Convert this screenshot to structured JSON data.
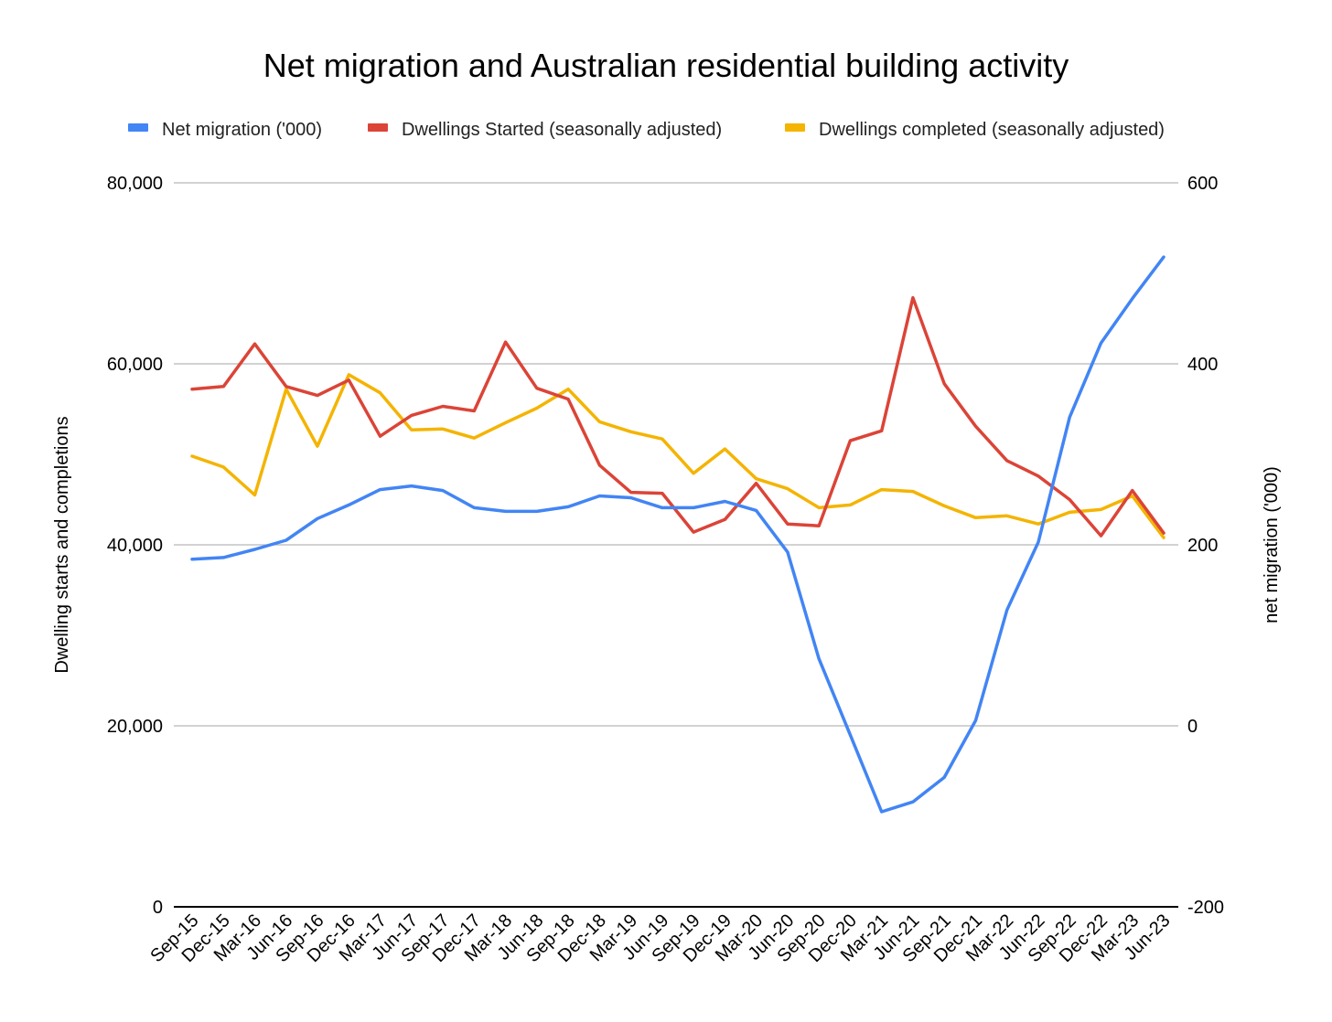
{
  "chart_data": {
    "type": "line",
    "title": "Net migration and Australian residential building activity",
    "x": [
      "Sep-15",
      "Dec-15",
      "Mar-16",
      "Jun-16",
      "Sep-16",
      "Dec-16",
      "Mar-17",
      "Jun-17",
      "Sep-17",
      "Dec-17",
      "Mar-18",
      "Jun-18",
      "Sep-18",
      "Dec-18",
      "Mar-19",
      "Jun-19",
      "Sep-19",
      "Dec-19",
      "Mar-20",
      "Jun-20",
      "Sep-20",
      "Dec-20",
      "Mar-21",
      "Jun-21",
      "Sep-21",
      "Dec-21",
      "Mar-22",
      "Jun-22",
      "Sep-22",
      "Dec-22",
      "Mar-23",
      "Jun-23"
    ],
    "ylabel_left": "Dwelling starts and completions",
    "ylabel_right": "net migration ('000)",
    "ylim_left": [
      0,
      80000
    ],
    "ylim_right": [
      -200,
      600
    ],
    "yticks_left": [
      "0",
      "20,000",
      "40,000",
      "60,000",
      "80,000"
    ],
    "yticks_right": [
      "-200",
      "0",
      "200",
      "400",
      "600"
    ],
    "grid": true,
    "legend_position": "top",
    "series": [
      {
        "name": "Net migration ('000)",
        "axis": "right",
        "color": "#4285f4",
        "values": [
          184,
          186,
          195,
          205,
          229,
          244,
          261,
          265,
          260,
          241,
          237,
          237,
          242,
          254,
          252,
          241,
          241,
          248,
          238,
          192,
          74,
          -10,
          -95,
          -84,
          -57,
          6,
          128,
          203,
          341,
          423,
          472,
          518
        ]
      },
      {
        "name": "Dwellings Started (seasonally adjusted)",
        "axis": "left",
        "color": "#db4437",
        "values": [
          57200,
          57500,
          62200,
          57500,
          56500,
          58200,
          52000,
          54300,
          55300,
          54800,
          62400,
          57300,
          56100,
          48800,
          45800,
          45700,
          41400,
          42800,
          46800,
          42300,
          42100,
          51500,
          52600,
          67300,
          57800,
          53100,
          49300,
          47600,
          45000,
          41000,
          46000,
          41300
        ]
      },
      {
        "name": "Dwellings completed (seasonally adjusted)",
        "axis": "left",
        "color": "#f4b400",
        "values": [
          49800,
          48600,
          45500,
          57200,
          50900,
          58800,
          56800,
          52700,
          52800,
          51800,
          53500,
          55100,
          57200,
          53600,
          52500,
          51700,
          47900,
          50600,
          47300,
          46200,
          44100,
          44400,
          46100,
          45900,
          44300,
          43000,
          43200,
          42300,
          43600,
          43900,
          45400,
          40800
        ]
      }
    ]
  }
}
